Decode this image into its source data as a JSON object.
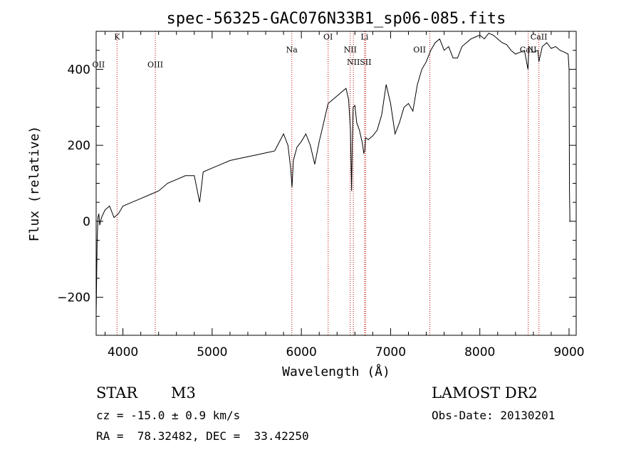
{
  "chart_data": {
    "type": "line",
    "title": "spec-56325-GAC076N33B1_sp06-085.fits",
    "xlabel": "Wavelength (Å)",
    "ylabel": "Flux (relative)",
    "xlim": [
      3700,
      9080
    ],
    "ylim": [
      -300,
      500
    ],
    "x_ticks": [
      4000,
      5000,
      6000,
      7000,
      8000,
      9000
    ],
    "y_ticks": [
      -200,
      0,
      200,
      400
    ],
    "grid": false,
    "series": [
      {
        "x": [
          3700,
          3710,
          3720,
          3730,
          3740,
          3760,
          3800,
          3850,
          3900,
          3950,
          4000,
          4100,
          4200,
          4300,
          4400,
          4500,
          4600,
          4700,
          4800,
          4860,
          4900,
          5000,
          5100,
          5200,
          5300,
          5400,
          5500,
          5600,
          5700,
          5800,
          5850,
          5880,
          5895,
          5910,
          5950,
          6000,
          6050,
          6100,
          6150,
          6200,
          6250,
          6300,
          6350,
          6400,
          6450,
          6500,
          6530,
          6550,
          6560,
          6563,
          6570,
          6580,
          6600,
          6620,
          6650,
          6680,
          6700,
          6710,
          6720,
          6750,
          6800,
          6850,
          6900,
          6950,
          7000,
          7050,
          7100,
          7150,
          7200,
          7250,
          7300,
          7350,
          7400,
          7450,
          7500,
          7550,
          7600,
          7650,
          7700,
          7750,
          7800,
          7850,
          7900,
          7950,
          8000,
          8050,
          8100,
          8150,
          8200,
          8250,
          8300,
          8350,
          8400,
          8450,
          8500,
          8540,
          8550,
          8600,
          8650,
          8662,
          8700,
          8750,
          8800,
          8850,
          8900,
          8950,
          8990,
          9000,
          9005,
          9010
        ],
        "y": [
          -250,
          -60,
          10,
          20,
          -10,
          10,
          30,
          40,
          10,
          20,
          40,
          50,
          60,
          70,
          80,
          100,
          110,
          120,
          120,
          50,
          130,
          140,
          150,
          160,
          165,
          170,
          175,
          180,
          185,
          230,
          200,
          140,
          90,
          160,
          195,
          210,
          230,
          200,
          150,
          210,
          260,
          310,
          320,
          330,
          340,
          350,
          320,
          240,
          120,
          80,
          200,
          300,
          305,
          260,
          240,
          210,
          180,
          185,
          220,
          215,
          225,
          240,
          280,
          360,
          310,
          230,
          260,
          300,
          310,
          290,
          360,
          400,
          420,
          450,
          470,
          480,
          450,
          460,
          430,
          430,
          460,
          470,
          480,
          485,
          490,
          480,
          495,
          490,
          480,
          470,
          465,
          450,
          440,
          445,
          450,
          400,
          460,
          445,
          450,
          420,
          460,
          470,
          455,
          460,
          450,
          445,
          440,
          400,
          80,
          0
        ]
      }
    ],
    "line_markers": [
      {
        "label": "OII",
        "x": 3727,
        "label_y": 405
      },
      {
        "label": "K",
        "x": 3934,
        "label_y": 478
      },
      {
        "label": "OIII",
        "x": 4363,
        "label_y": 405
      },
      {
        "label": "Na",
        "x": 5893,
        "label_y": 445
      },
      {
        "label": "OI",
        "x": 6300,
        "label_y": 478
      },
      {
        "label": "NII",
        "x": 6548,
        "label_y": 445
      },
      {
        "label": "NII",
        "x": 6583,
        "label_y": 412
      },
      {
        "label": "Li",
        "x": 6708,
        "label_y": 478
      },
      {
        "label": "SII",
        "x": 6720,
        "label_y": 412
      },
      {
        "label": "OII",
        "x": 7325,
        "label_y": 445
      },
      {
        "label": "CaII",
        "x": 8542,
        "label_y": 445
      },
      {
        "label": "CaII",
        "x": 8662,
        "label_y": 478
      }
    ],
    "marker_lines_x": [
      3934,
      4363,
      5893,
      6300,
      6548,
      6583,
      6708,
      6720,
      7440,
      8542,
      8662
    ]
  },
  "info": {
    "object_class": "STAR",
    "subclass": "M3",
    "redshift": "cz = -15.0 ± 0.9 km/s",
    "coords": "RA =  78.32482, DEC =  33.42250",
    "survey": "LAMOST DR2",
    "obs_date": "Obs-Date: 20130201"
  },
  "colors": {
    "spectrum": "#000000",
    "marker_line": "#c00000",
    "axes": "#000000",
    "background": "#ffffff"
  }
}
